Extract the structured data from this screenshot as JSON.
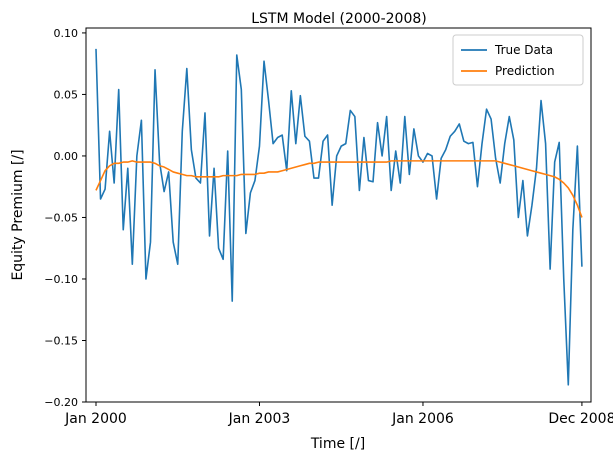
{
  "chart_data": {
    "type": "line",
    "title": "LSTM Model (2000-2008)",
    "xlabel": "Time [/]",
    "ylabel": "Equity Premium [/]",
    "x_ticks": [
      "Jan 2000",
      "Jan 2003",
      "Jan 2006",
      "Dec 2008"
    ],
    "x_tick_positions": [
      0,
      36,
      72,
      107
    ],
    "xlim": [
      -2.2,
      109
    ],
    "ylim": [
      -0.2,
      0.104
    ],
    "y_ticks": [
      0.1,
      0.05,
      0.0,
      -0.05,
      -0.1,
      -0.15,
      -0.2
    ],
    "y_tick_labels": [
      "0.10",
      "0.05",
      "0.00",
      "−0.05",
      "−0.10",
      "−0.15",
      "−0.20"
    ],
    "grid": false,
    "legend": "top-right",
    "colors": {
      "true_data": "#1f77b4",
      "prediction": "#ff7f0e"
    },
    "series": [
      {
        "name": "True Data",
        "x_start": 0,
        "values": [
          0.087,
          -0.035,
          -0.027,
          0.02,
          -0.022,
          0.054,
          -0.06,
          -0.01,
          -0.088,
          0.0,
          0.029,
          -0.1,
          -0.07,
          0.07,
          -0.005,
          -0.029,
          -0.013,
          -0.07,
          -0.088,
          0.02,
          0.071,
          0.005,
          -0.018,
          -0.022,
          0.035,
          -0.065,
          -0.01,
          -0.075,
          -0.084,
          0.004,
          -0.118,
          0.082,
          0.054,
          -0.063,
          -0.03,
          -0.02,
          0.008,
          0.077,
          0.045,
          0.01,
          0.015,
          0.017,
          -0.012,
          0.053,
          0.01,
          0.049,
          0.016,
          0.012,
          -0.018,
          -0.018,
          0.012,
          0.017,
          -0.04,
          0.0,
          0.008,
          0.01,
          0.037,
          0.032,
          -0.028,
          0.015,
          -0.02,
          -0.021,
          0.027,
          0.0,
          0.032,
          -0.028,
          0.004,
          -0.022,
          0.032,
          -0.015,
          0.022,
          0.0,
          -0.005,
          0.002,
          0.0,
          -0.035,
          -0.002,
          0.005,
          0.016,
          0.02,
          0.026,
          0.012,
          0.01,
          0.011,
          -0.025,
          0.01,
          0.038,
          0.03,
          -0.002,
          -0.022,
          0.01,
          0.032,
          0.013,
          -0.05,
          -0.02,
          -0.065,
          -0.04,
          -0.01,
          0.045,
          0.01,
          -0.092,
          -0.005,
          0.011,
          -0.1,
          -0.186,
          -0.06,
          0.008,
          -0.09
        ]
      },
      {
        "name": "Prediction",
        "x_start": 0,
        "values": [
          -0.028,
          -0.02,
          -0.012,
          -0.008,
          -0.006,
          -0.006,
          -0.005,
          -0.005,
          -0.004,
          -0.005,
          -0.005,
          -0.005,
          -0.005,
          -0.006,
          -0.008,
          -0.009,
          -0.011,
          -0.013,
          -0.014,
          -0.015,
          -0.016,
          -0.016,
          -0.017,
          -0.017,
          -0.017,
          -0.017,
          -0.017,
          -0.017,
          -0.016,
          -0.016,
          -0.016,
          -0.016,
          -0.015,
          -0.015,
          -0.015,
          -0.015,
          -0.014,
          -0.014,
          -0.013,
          -0.013,
          -0.013,
          -0.012,
          -0.011,
          -0.01,
          -0.009,
          -0.008,
          -0.007,
          -0.006,
          -0.006,
          -0.005,
          -0.005,
          -0.005,
          -0.005,
          -0.005,
          -0.005,
          -0.005,
          -0.005,
          -0.005,
          -0.005,
          -0.005,
          -0.005,
          -0.005,
          -0.005,
          -0.005,
          -0.005,
          -0.004,
          -0.004,
          -0.004,
          -0.004,
          -0.004,
          -0.004,
          -0.004,
          -0.004,
          -0.004,
          -0.004,
          -0.004,
          -0.004,
          -0.004,
          -0.004,
          -0.004,
          -0.004,
          -0.004,
          -0.004,
          -0.004,
          -0.004,
          -0.004,
          -0.004,
          -0.004,
          -0.004,
          -0.005,
          -0.006,
          -0.007,
          -0.008,
          -0.009,
          -0.01,
          -0.011,
          -0.012,
          -0.013,
          -0.014,
          -0.015,
          -0.016,
          -0.017,
          -0.019,
          -0.022,
          -0.026,
          -0.032,
          -0.04,
          -0.05
        ]
      }
    ]
  }
}
